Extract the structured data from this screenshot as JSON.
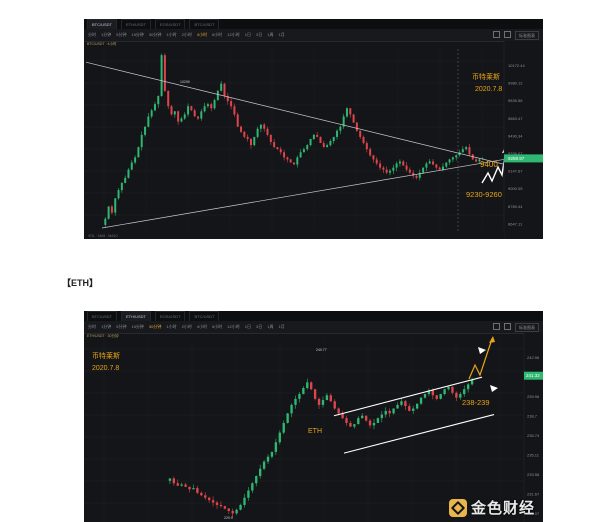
{
  "charts": [
    {
      "tabs": [
        "BTC/USDT",
        "ETH/USDT",
        "EOS/USDT",
        "BTC/USDT"
      ],
      "timeframes": [
        "分时",
        "1分钟",
        "5分钟",
        "15分钟",
        "30分钟",
        "1小时",
        "2小时",
        "4小时",
        "6小时",
        "12小时",
        "1日",
        "3日",
        "1周",
        "1月"
      ],
      "selected_timeframe": "4小时",
      "toolbar_btn": "标准图表",
      "annotation_author": "币特莱斯",
      "annotation_date": "2020.7.8",
      "target_label": "9400",
      "support_label": "9230-9260",
      "peak_label": "10299",
      "low_label": "8635",
      "price_ticks": [
        "10172.44",
        "9980.12",
        "9835.56",
        "9663.47",
        "9490.34",
        "9336.07",
        "9147.67",
        "9000.05",
        "8789.44",
        "8647.11"
      ],
      "last_price": "9288.97"
    },
    {
      "tabs": [
        "BTC/USDT",
        "ETH/USDT",
        "EOS/USDT",
        "BTC/USDT"
      ],
      "timeframes": [
        "分时",
        "1分钟",
        "5分钟",
        "15分钟",
        "30分钟",
        "1小时",
        "2小时",
        "4小时",
        "6小时",
        "12小时",
        "1日",
        "3日",
        "1周",
        "1月"
      ],
      "selected_timeframe": "30分钟",
      "toolbar_btn": "标准图表",
      "annotation_author": "币特莱斯",
      "annotation_date": "2020.7.8",
      "coin_label": "ETH",
      "target_label": "245",
      "support_label": "238-239",
      "peak_label": "240.77",
      "low_label": "229.9",
      "price_ticks": [
        "242.96",
        "241.44",
        "239.96",
        "238.7",
        "236.74",
        "235.11",
        "233.58",
        "231.67",
        "230.07"
      ],
      "last_price": "241.32"
    }
  ],
  "section_label": "【ETH】",
  "watermark_text": "金色财经",
  "colors": {
    "up": "#2eb872",
    "down": "#e0454e",
    "annotation": "#e8a317",
    "last": "#2eb872"
  }
}
